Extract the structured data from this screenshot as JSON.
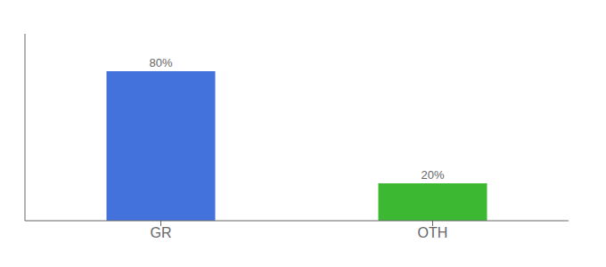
{
  "chart_data": {
    "type": "bar",
    "categories": [
      "GR",
      "OTH"
    ],
    "values": [
      80,
      20
    ],
    "colors": [
      "#4472dd",
      "#3cb832"
    ],
    "ylim": [
      0,
      100
    ],
    "data_labels": true,
    "value_labels": [
      "80%",
      "20%"
    ],
    "tick_labels": "x"
  }
}
